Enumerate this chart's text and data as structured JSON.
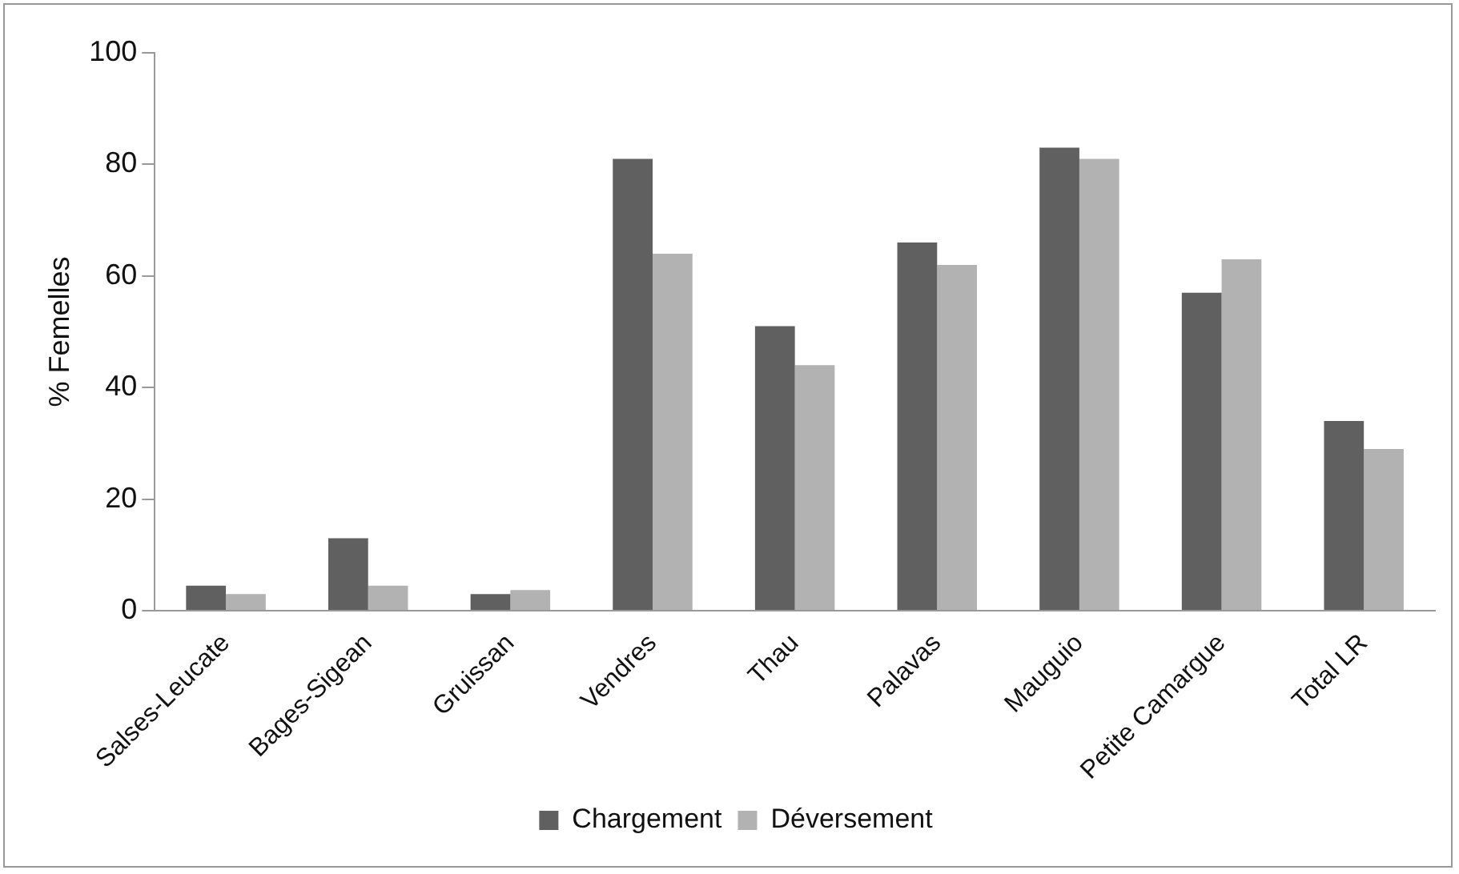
{
  "chart_data": {
    "type": "bar",
    "ylabel": "% Femelles",
    "categories": [
      "Salses-Leucate",
      "Bages-Sigean",
      "Gruissan",
      "Vendres",
      "Thau",
      "Palavas",
      "Mauguio",
      "Petite Camargue",
      "Total LR"
    ],
    "series": [
      {
        "name": "Chargement",
        "color": "#606060",
        "values": [
          4.5,
          13,
          3,
          81,
          51,
          66,
          83,
          57,
          34
        ]
      },
      {
        "name": "Déversement",
        "color": "#b2b2b2",
        "values": [
          3,
          4.5,
          3.7,
          64,
          44,
          62,
          81,
          63,
          29
        ]
      }
    ],
    "ylim": [
      0,
      100
    ],
    "yticks": [
      0,
      20,
      40,
      60,
      80,
      100
    ],
    "grid": false,
    "legend": "bottom"
  }
}
